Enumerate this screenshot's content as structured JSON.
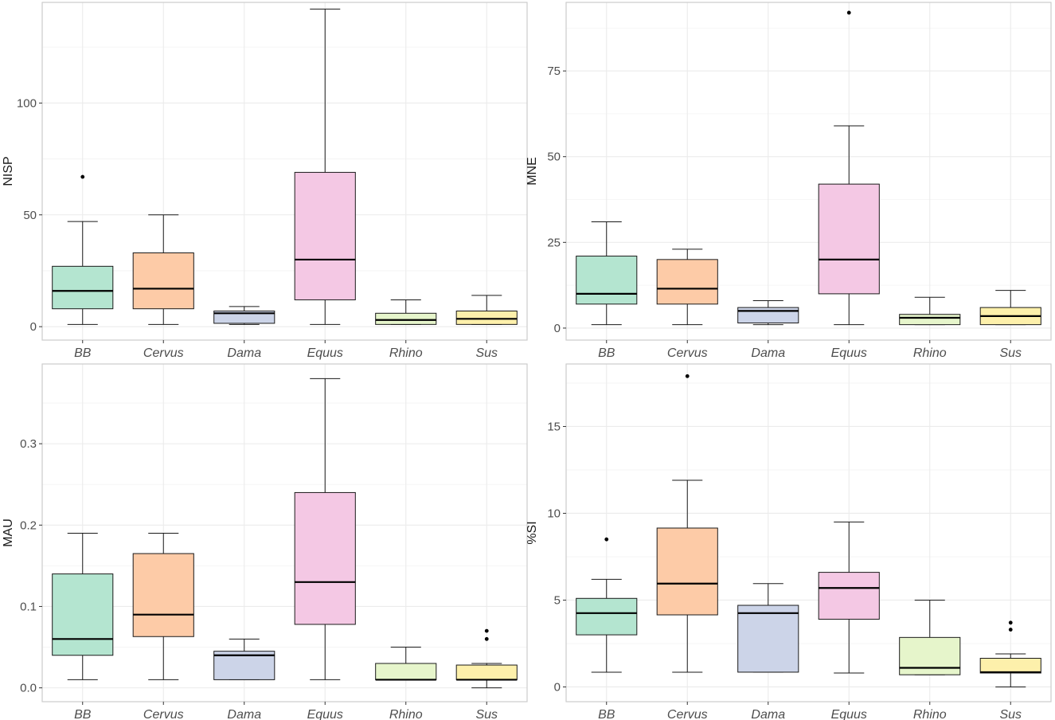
{
  "colors": {
    "BB": "#b4e5d0",
    "Cervus": "#fdcba7",
    "Dama": "#ccd4e8",
    "Equus": "#f4c8e4",
    "Rhino": "#e6f5cb",
    "Sus": "#fdf0ab",
    "grid": "#ebebeb",
    "panel_border": "#cccccc",
    "box_stroke": "#1a1a1a",
    "text": "#1a1a1a",
    "tick_text": "#4d4d4d"
  },
  "chart_data": [
    {
      "type": "boxplot",
      "ylabel": "NISP",
      "ylim": [
        -6,
        145
      ],
      "yticks": [
        0,
        50,
        100
      ],
      "ytick_labels": [
        "0",
        "50",
        "100"
      ],
      "ygrid_minor": [
        25,
        75,
        125
      ],
      "categories": [
        "BB",
        "Cervus",
        "Dama",
        "Equus",
        "Rhino",
        "Sus"
      ],
      "boxes": [
        {
          "category": "BB",
          "min": 1,
          "q1": 8,
          "median": 16,
          "q3": 27,
          "max": 47,
          "outliers": [
            67
          ]
        },
        {
          "category": "Cervus",
          "min": 1,
          "q1": 8,
          "median": 17,
          "q3": 33,
          "max": 50,
          "outliers": []
        },
        {
          "category": "Dama",
          "min": 1,
          "q1": 1.5,
          "median": 6,
          "q3": 7,
          "max": 9,
          "outliers": []
        },
        {
          "category": "Equus",
          "min": 1,
          "q1": 12,
          "median": 30,
          "q3": 69,
          "max": 142,
          "outliers": []
        },
        {
          "category": "Rhino",
          "min": 1,
          "q1": 1,
          "median": 3,
          "q3": 6,
          "max": 12,
          "outliers": []
        },
        {
          "category": "Sus",
          "min": 1,
          "q1": 1,
          "median": 3.5,
          "q3": 7,
          "max": 14,
          "outliers": []
        }
      ]
    },
    {
      "type": "boxplot",
      "ylabel": "MNE",
      "ylim": [
        -3.5,
        95
      ],
      "yticks": [
        0,
        25,
        50,
        75
      ],
      "ytick_labels": [
        "0",
        "25",
        "50",
        "75"
      ],
      "ygrid_minor": [
        12.5,
        37.5,
        62.5,
        87.5
      ],
      "categories": [
        "BB",
        "Cervus",
        "Dama",
        "Equus",
        "Rhino",
        "Sus"
      ],
      "boxes": [
        {
          "category": "BB",
          "min": 1,
          "q1": 7,
          "median": 10,
          "q3": 21,
          "max": 31,
          "outliers": []
        },
        {
          "category": "Cervus",
          "min": 1,
          "q1": 7,
          "median": 11.5,
          "q3": 20,
          "max": 23,
          "outliers": []
        },
        {
          "category": "Dama",
          "min": 1,
          "q1": 1.5,
          "median": 5,
          "q3": 6,
          "max": 8,
          "outliers": []
        },
        {
          "category": "Equus",
          "min": 1,
          "q1": 10,
          "median": 20,
          "q3": 42,
          "max": 59,
          "outliers": [
            92
          ]
        },
        {
          "category": "Rhino",
          "min": 1,
          "q1": 1,
          "median": 3,
          "q3": 4,
          "max": 9,
          "outliers": []
        },
        {
          "category": "Sus",
          "min": 1,
          "q1": 1,
          "median": 3.5,
          "q3": 6,
          "max": 11,
          "outliers": []
        }
      ]
    },
    {
      "type": "boxplot",
      "ylabel": "MAU",
      "ylim": [
        -0.017,
        0.398
      ],
      "yticks": [
        0.0,
        0.1,
        0.2,
        0.3
      ],
      "ytick_labels": [
        "0.0",
        "0.1",
        "0.2",
        "0.3"
      ],
      "ygrid_minor": [
        0.05,
        0.15,
        0.25,
        0.35
      ],
      "categories": [
        "BB",
        "Cervus",
        "Dama",
        "Equus",
        "Rhino",
        "Sus"
      ],
      "boxes": [
        {
          "category": "BB",
          "min": 0.01,
          "q1": 0.04,
          "median": 0.06,
          "q3": 0.14,
          "max": 0.19,
          "outliers": []
        },
        {
          "category": "Cervus",
          "min": 0.01,
          "q1": 0.063,
          "median": 0.09,
          "q3": 0.165,
          "max": 0.19,
          "outliers": []
        },
        {
          "category": "Dama",
          "min": 0.01,
          "q1": 0.01,
          "median": 0.04,
          "q3": 0.045,
          "max": 0.06,
          "outliers": []
        },
        {
          "category": "Equus",
          "min": 0.01,
          "q1": 0.078,
          "median": 0.13,
          "q3": 0.24,
          "max": 0.38,
          "outliers": []
        },
        {
          "category": "Rhino",
          "min": 0.01,
          "q1": 0.01,
          "median": 0.01,
          "q3": 0.03,
          "max": 0.05,
          "outliers": []
        },
        {
          "category": "Sus",
          "min": 0.0,
          "q1": 0.01,
          "median": 0.01,
          "q3": 0.028,
          "max": 0.03,
          "outliers": [
            0.06,
            0.07
          ]
        }
      ]
    },
    {
      "type": "boxplot",
      "ylabel": "%SI",
      "ylim": [
        -0.85,
        18.6
      ],
      "yticks": [
        0,
        5,
        10,
        15
      ],
      "ytick_labels": [
        "0",
        "5",
        "10",
        "15"
      ],
      "ygrid_minor": [
        2.5,
        7.5,
        12.5,
        17.5
      ],
      "categories": [
        "BB",
        "Cervus",
        "Dama",
        "Equus",
        "Rhino",
        "Sus"
      ],
      "boxes": [
        {
          "category": "BB",
          "min": 0.85,
          "q1": 3.0,
          "median": 4.25,
          "q3": 5.1,
          "max": 6.2,
          "outliers": [
            8.5
          ]
        },
        {
          "category": "Cervus",
          "min": 0.85,
          "q1": 4.15,
          "median": 5.95,
          "q3": 9.15,
          "max": 11.9,
          "outliers": [
            17.9
          ]
        },
        {
          "category": "Dama",
          "min": 0.85,
          "q1": 0.85,
          "median": 4.25,
          "q3": 4.7,
          "max": 5.95,
          "outliers": []
        },
        {
          "category": "Equus",
          "min": 0.8,
          "q1": 3.9,
          "median": 5.7,
          "q3": 6.6,
          "max": 9.5,
          "outliers": []
        },
        {
          "category": "Rhino",
          "min": 0.7,
          "q1": 0.7,
          "median": 1.1,
          "q3": 2.85,
          "max": 5.0,
          "outliers": []
        },
        {
          "category": "Sus",
          "min": 0.0,
          "q1": 0.8,
          "median": 0.85,
          "q3": 1.65,
          "max": 1.9,
          "outliers": [
            3.3,
            3.7
          ]
        }
      ]
    }
  ]
}
